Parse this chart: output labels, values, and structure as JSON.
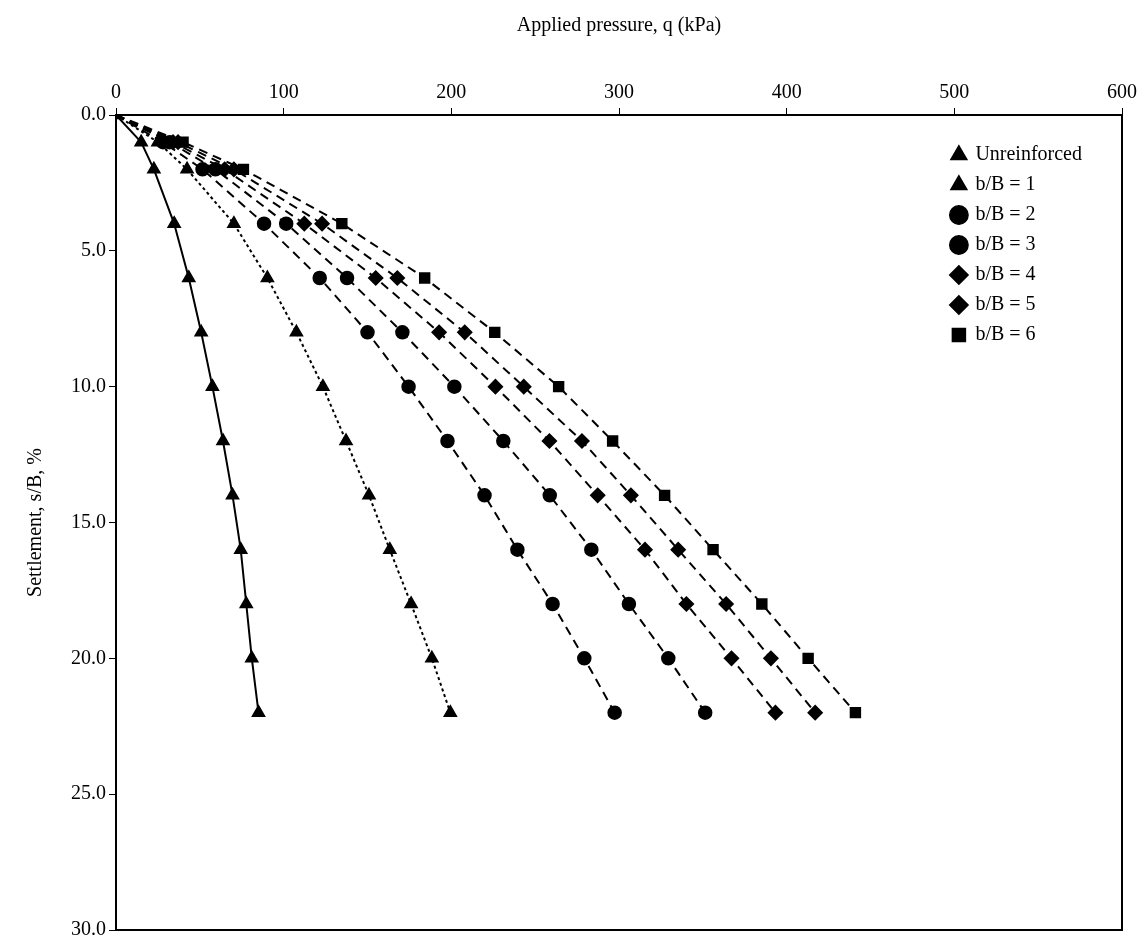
{
  "chart_data": {
    "type": "line",
    "xlabel": "Applied pressure, q (kPa)",
    "ylabel": "Settlement, s/B, %",
    "xlim": [
      0,
      600
    ],
    "xticks": [
      0,
      100,
      200,
      300,
      400,
      500,
      600
    ],
    "ylim": [
      30,
      0
    ],
    "yticks": [
      {
        "value": 0,
        "label": "0.0"
      },
      {
        "value": 5,
        "label": "5.0"
      },
      {
        "value": 10,
        "label": "10.0"
      },
      {
        "value": 15,
        "label": "15.0"
      },
      {
        "value": 20,
        "label": "20.0"
      },
      {
        "value": 25,
        "label": "25.0"
      },
      {
        "value": 30,
        "label": "30.0"
      }
    ],
    "grid": false,
    "legend": "top right",
    "series": [
      {
        "name": "Unreinforced",
        "color": "#000000",
        "marker": "triangle",
        "line_style": "solid",
        "x": [
          0,
          15,
          22.6,
          34.7,
          43.4,
          50.8,
          57.5,
          63.8,
          69.5,
          74.4,
          77.7,
          81,
          85
        ],
        "values": [
          0,
          1,
          2,
          4,
          6,
          8,
          10,
          12,
          14,
          16,
          18,
          20,
          22
        ]
      },
      {
        "name": "b/B = 1",
        "color": "#000000",
        "marker": "triangle",
        "line_style": "dotted",
        "x": [
          0,
          25,
          42.4,
          70.3,
          90.3,
          107.6,
          123.4,
          137.2,
          150.9,
          163.3,
          176,
          188.4,
          199.4
        ],
        "values": [
          0,
          1,
          2,
          4,
          6,
          8,
          10,
          12,
          14,
          16,
          18,
          20,
          22
        ]
      },
      {
        "name": "b/B = 2",
        "color": "#000000",
        "marker": "circle",
        "line_style": "dashed",
        "x": [
          0,
          28,
          51.6,
          88.3,
          121.5,
          150,
          174.5,
          197.7,
          219.8,
          239.4,
          260.4,
          279.3,
          297.4
        ],
        "values": [
          0,
          1,
          2,
          4,
          6,
          8,
          10,
          12,
          14,
          16,
          18,
          20,
          22
        ]
      },
      {
        "name": "b/B = 3",
        "color": "#000000",
        "marker": "circle",
        "line_style": "dashed",
        "x": [
          0,
          32,
          59.3,
          101.5,
          137.8,
          170.8,
          201.8,
          231,
          258.7,
          283.5,
          305.9,
          329.4,
          351.4
        ],
        "values": [
          0,
          1,
          2,
          4,
          6,
          8,
          10,
          12,
          14,
          16,
          18,
          20,
          22
        ]
      },
      {
        "name": "b/B = 4",
        "color": "#000000",
        "marker": "diamond",
        "line_style": "dashed",
        "x": [
          0,
          34,
          64.8,
          112.3,
          154.9,
          192.7,
          226.3,
          258.5,
          287.3,
          315.5,
          340.2,
          367.1,
          393.3
        ],
        "values": [
          0,
          1,
          2,
          4,
          6,
          8,
          10,
          12,
          14,
          16,
          18,
          20,
          22
        ]
      },
      {
        "name": "b/B = 5",
        "color": "#000000",
        "marker": "diamond",
        "line_style": "dashed",
        "x": [
          0,
          37,
          70.3,
          122.9,
          167.8,
          208,
          243.2,
          277.9,
          307.1,
          335.3,
          363.9,
          390.6,
          417
        ],
        "values": [
          0,
          1,
          2,
          4,
          6,
          8,
          10,
          12,
          14,
          16,
          18,
          20,
          22
        ]
      },
      {
        "name": "b/B = 6",
        "color": "#000000",
        "marker": "square",
        "line_style": "dashed",
        "x": [
          0,
          40,
          76,
          134.7,
          184.1,
          225.9,
          264,
          296.2,
          327.2,
          356.1,
          385.2,
          412.8,
          441
        ],
        "values": [
          0,
          1,
          2,
          4,
          6,
          8,
          10,
          12,
          14,
          16,
          18,
          20,
          22
        ]
      }
    ]
  }
}
